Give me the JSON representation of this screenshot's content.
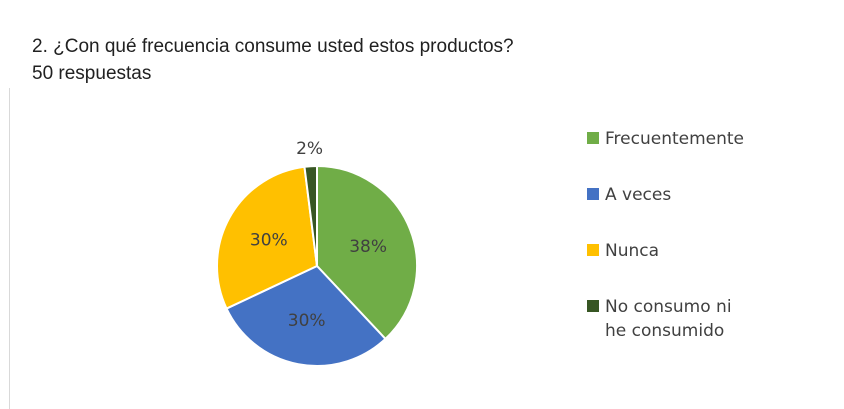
{
  "header": {
    "question": "2. ¿Con qué frecuencia consume usted estos productos?",
    "responses": "50 respuestas"
  },
  "colors": {
    "green": "#70ad47",
    "blue": "#4472c4",
    "yellow": "#ffc000",
    "dark_green": "#375623"
  },
  "chart_data": {
    "type": "pie",
    "title": "",
    "legend_position": "right",
    "slices": [
      {
        "label": "Frecuentemente",
        "value": 38,
        "display": "38%",
        "color": "#70ad47"
      },
      {
        "label": "A veces",
        "value": 30,
        "display": "30%",
        "color": "#4472c4"
      },
      {
        "label": "Nunca",
        "value": 30,
        "display": "30%",
        "color": "#ffc000"
      },
      {
        "label": "No consumo ni he consumido",
        "value": 2,
        "display": "2%",
        "color": "#375623"
      }
    ]
  }
}
